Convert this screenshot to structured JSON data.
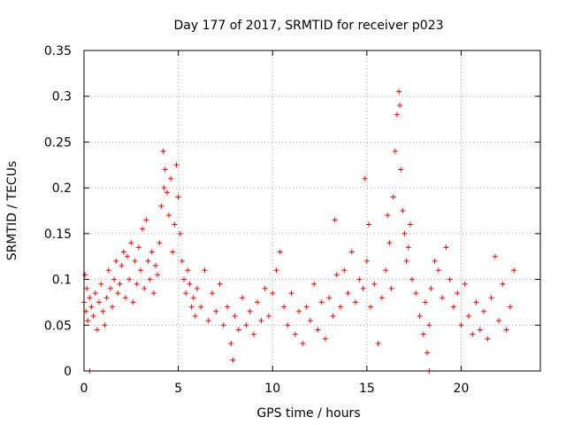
{
  "chart_data": {
    "type": "scatter",
    "title": "Day 177 of 2017, SRMTID for receiver p023",
    "xlabel": "GPS time / hours",
    "ylabel": "SRMTID / TECUs",
    "xlim": [
      0,
      24.2
    ],
    "ylim": [
      0,
      0.35
    ],
    "x_ticks": [
      0,
      5,
      10,
      15,
      20
    ],
    "y_ticks": [
      0,
      0.05,
      0.1,
      0.15,
      0.2,
      0.25,
      0.3,
      0.35
    ],
    "x_tick_labels": [
      "0",
      "5",
      "10",
      "15",
      "20"
    ],
    "y_tick_labels": [
      "0",
      "0.05",
      "0.1",
      "0.15",
      "0.2",
      "0.25",
      "0.3",
      "0.35"
    ],
    "grid": true,
    "marker": "+",
    "color": "#ff0000",
    "series": [
      {
        "name": "SRMTID p023",
        "points": [
          [
            0.0,
            0.075
          ],
          [
            0.05,
            0.105
          ],
          [
            0.1,
            0.065
          ],
          [
            0.15,
            0.09
          ],
          [
            0.2,
            0.055
          ],
          [
            0.3,
            0.08
          ],
          [
            0.4,
            0.07
          ],
          [
            0.5,
            0.06
          ],
          [
            0.6,
            0.085
          ],
          [
            0.7,
            0.045
          ],
          [
            0.8,
            0.075
          ],
          [
            0.9,
            0.095
          ],
          [
            1.0,
            0.065
          ],
          [
            1.1,
            0.05
          ],
          [
            1.2,
            0.08
          ],
          [
            1.3,
            0.11
          ],
          [
            1.4,
            0.09
          ],
          [
            1.5,
            0.07
          ],
          [
            1.6,
            0.1
          ],
          [
            1.7,
            0.12
          ],
          [
            1.8,
            0.085
          ],
          [
            1.9,
            0.095
          ],
          [
            2.0,
            0.115
          ],
          [
            2.1,
            0.13
          ],
          [
            2.2,
            0.08
          ],
          [
            2.3,
            0.125
          ],
          [
            2.4,
            0.1
          ],
          [
            2.5,
            0.14
          ],
          [
            2.6,
            0.075
          ],
          [
            2.7,
            0.12
          ],
          [
            2.8,
            0.095
          ],
          [
            2.9,
            0.135
          ],
          [
            3.0,
            0.11
          ],
          [
            3.1,
            0.155
          ],
          [
            3.2,
            0.09
          ],
          [
            3.3,
            0.165
          ],
          [
            3.4,
            0.12
          ],
          [
            3.5,
            0.1
          ],
          [
            3.6,
            0.13
          ],
          [
            3.7,
            0.085
          ],
          [
            3.8,
            0.115
          ],
          [
            3.9,
            0.105
          ],
          [
            4.0,
            0.14
          ],
          [
            4.1,
            0.18
          ],
          [
            4.2,
            0.24
          ],
          [
            4.25,
            0.2
          ],
          [
            4.3,
            0.22
          ],
          [
            4.4,
            0.195
          ],
          [
            4.5,
            0.17
          ],
          [
            4.6,
            0.21
          ],
          [
            4.7,
            0.13
          ],
          [
            4.8,
            0.16
          ],
          [
            4.9,
            0.225
          ],
          [
            5.0,
            0.19
          ],
          [
            5.1,
            0.15
          ],
          [
            5.2,
            0.12
          ],
          [
            5.3,
            0.1
          ],
          [
            5.4,
            0.085
          ],
          [
            5.5,
            0.11
          ],
          [
            5.6,
            0.095
          ],
          [
            5.7,
            0.07
          ],
          [
            5.8,
            0.08
          ],
          [
            5.9,
            0.06
          ],
          [
            6.0,
            0.09
          ],
          [
            6.2,
            0.07
          ],
          [
            6.4,
            0.11
          ],
          [
            6.6,
            0.055
          ],
          [
            6.8,
            0.085
          ],
          [
            7.0,
            0.065
          ],
          [
            7.2,
            0.095
          ],
          [
            7.4,
            0.05
          ],
          [
            7.6,
            0.07
          ],
          [
            7.8,
            0.03
          ],
          [
            7.9,
            0.012
          ],
          [
            8.0,
            0.06
          ],
          [
            8.2,
            0.045
          ],
          [
            8.4,
            0.08
          ],
          [
            8.6,
            0.05
          ],
          [
            8.8,
            0.065
          ],
          [
            9.0,
            0.04
          ],
          [
            9.2,
            0.075
          ],
          [
            9.4,
            0.055
          ],
          [
            9.6,
            0.09
          ],
          [
            9.8,
            0.06
          ],
          [
            10.0,
            0.085
          ],
          [
            10.2,
            0.11
          ],
          [
            10.4,
            0.13
          ],
          [
            10.6,
            0.07
          ],
          [
            10.8,
            0.05
          ],
          [
            11.0,
            0.085
          ],
          [
            11.2,
            0.04
          ],
          [
            11.4,
            0.065
          ],
          [
            11.6,
            0.03
          ],
          [
            11.8,
            0.07
          ],
          [
            12.0,
            0.055
          ],
          [
            12.2,
            0.095
          ],
          [
            12.4,
            0.045
          ],
          [
            12.6,
            0.075
          ],
          [
            12.8,
            0.035
          ],
          [
            13.0,
            0.08
          ],
          [
            13.2,
            0.06
          ],
          [
            13.3,
            0.165
          ],
          [
            13.4,
            0.105
          ],
          [
            13.6,
            0.07
          ],
          [
            13.8,
            0.11
          ],
          [
            14.0,
            0.085
          ],
          [
            14.2,
            0.13
          ],
          [
            14.4,
            0.075
          ],
          [
            14.6,
            0.1
          ],
          [
            14.8,
            0.09
          ],
          [
            14.9,
            0.21
          ],
          [
            15.0,
            0.12
          ],
          [
            15.1,
            0.16
          ],
          [
            15.2,
            0.07
          ],
          [
            15.4,
            0.095
          ],
          [
            15.6,
            0.03
          ],
          [
            15.8,
            0.08
          ],
          [
            16.0,
            0.11
          ],
          [
            16.1,
            0.17
          ],
          [
            16.2,
            0.14
          ],
          [
            16.3,
            0.09
          ],
          [
            16.4,
            0.19
          ],
          [
            16.5,
            0.24
          ],
          [
            16.6,
            0.28
          ],
          [
            16.7,
            0.305
          ],
          [
            16.75,
            0.29
          ],
          [
            16.8,
            0.22
          ],
          [
            16.9,
            0.175
          ],
          [
            17.0,
            0.15
          ],
          [
            17.1,
            0.12
          ],
          [
            17.2,
            0.135
          ],
          [
            17.3,
            0.16
          ],
          [
            17.4,
            0.1
          ],
          [
            17.6,
            0.085
          ],
          [
            17.8,
            0.06
          ],
          [
            18.0,
            0.04
          ],
          [
            18.1,
            0.075
          ],
          [
            18.2,
            0.02
          ],
          [
            18.3,
            0.05
          ],
          [
            18.4,
            0.09
          ],
          [
            18.6,
            0.12
          ],
          [
            18.8,
            0.11
          ],
          [
            19.0,
            0.08
          ],
          [
            19.2,
            0.135
          ],
          [
            19.4,
            0.1
          ],
          [
            19.6,
            0.07
          ],
          [
            19.8,
            0.085
          ],
          [
            20.0,
            0.05
          ],
          [
            20.2,
            0.095
          ],
          [
            20.4,
            0.06
          ],
          [
            20.6,
            0.04
          ],
          [
            20.8,
            0.075
          ],
          [
            21.0,
            0.045
          ],
          [
            21.2,
            0.065
          ],
          [
            21.4,
            0.035
          ],
          [
            21.6,
            0.08
          ],
          [
            21.8,
            0.125
          ],
          [
            22.0,
            0.055
          ],
          [
            22.2,
            0.095
          ],
          [
            22.4,
            0.045
          ],
          [
            22.6,
            0.07
          ],
          [
            22.8,
            0.11
          ],
          [
            0.3,
            0.0
          ],
          [
            18.3,
            0.0
          ]
        ]
      }
    ]
  }
}
